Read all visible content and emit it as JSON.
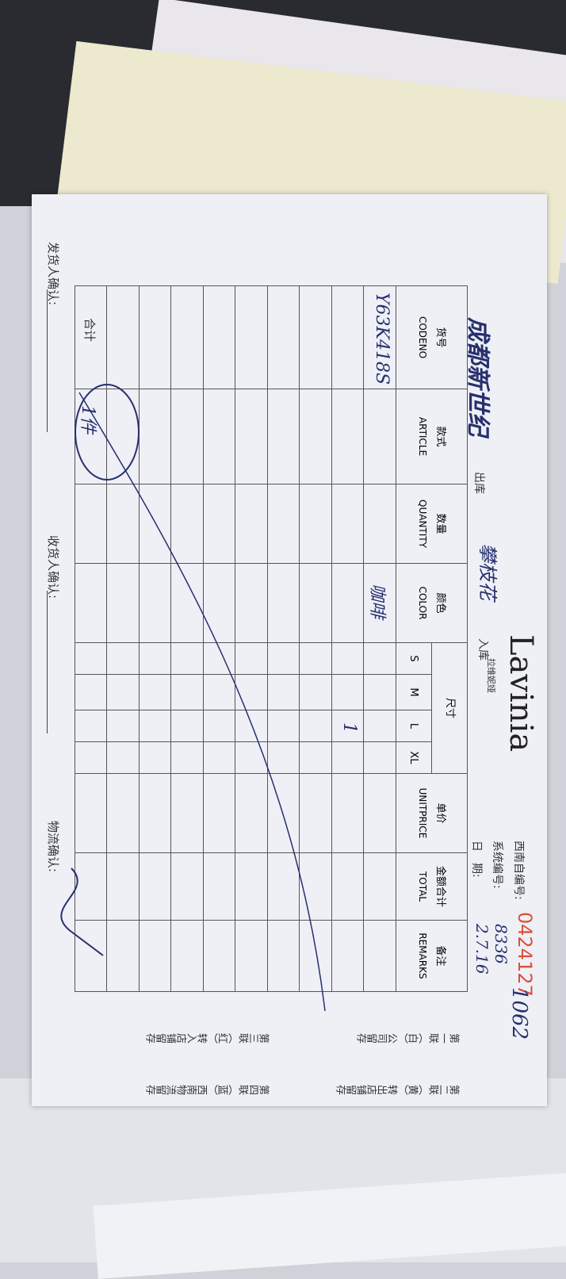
{
  "header": {
    "brand": "Lavinia",
    "brand_sub": "拉维妮娅",
    "out_store": "成都新世纪",
    "out_label": "出库",
    "in_store": "攀枝花",
    "in_label": "入库",
    "serial_label": "西南自编号:",
    "serial": "0424127",
    "serial_note": "1062",
    "system_label": "系统编号:",
    "system_no": "8336",
    "date_label": "日　期:",
    "date": "2.7.16"
  },
  "table": {
    "columns": [
      {
        "zh": "货号",
        "en": "CODENO"
      },
      {
        "zh": "款式",
        "en": "ARTICLE"
      },
      {
        "zh": "数量",
        "en": "QUANTITY"
      },
      {
        "zh": "颜色",
        "en": "COLOR"
      },
      {
        "zh": "尺寸",
        "en": "S"
      },
      {
        "en": "M"
      },
      {
        "en": "L"
      },
      {
        "en": "XL"
      },
      {
        "zh": "单价",
        "en": "UNITPRICE"
      },
      {
        "zh": "金额合计",
        "en": "TOTAL"
      },
      {
        "zh": "备注",
        "en": "REMARKS"
      }
    ],
    "entry": {
      "codeno": "Y63K418S",
      "color": "咖啡",
      "l": "1"
    },
    "total_label": "合计",
    "total_quantity": "1件"
  },
  "copies": [
    "第一联（白）公司留存",
    "第二联（黄）转出店铺留存",
    "第三联（红）转入店铺留存",
    "第四联（蓝）西南物流留存"
  ],
  "footer": {
    "sender": "发货人确认:",
    "receiver": "收货人确认:",
    "logistics": "物流确认:"
  }
}
